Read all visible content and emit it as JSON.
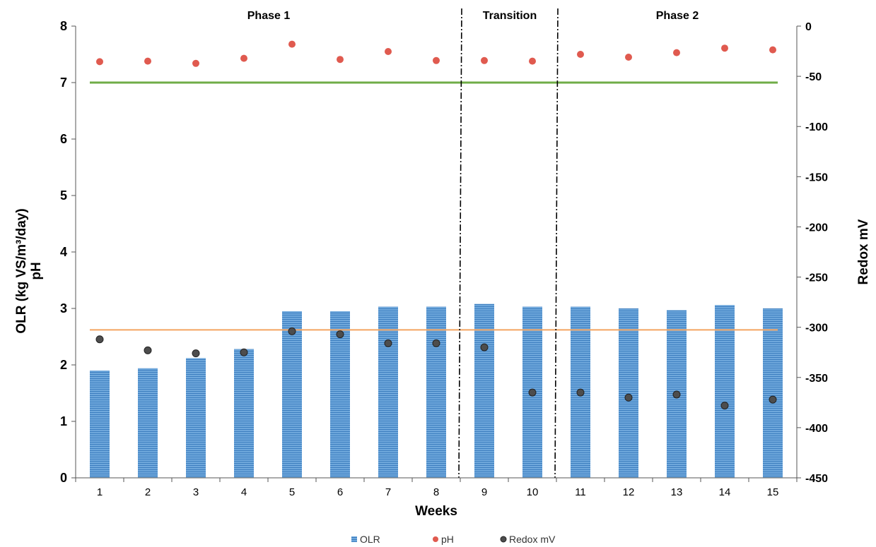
{
  "chart_data": {
    "type": "bar",
    "categories": [
      "1",
      "2",
      "3",
      "4",
      "5",
      "6",
      "7",
      "8",
      "9",
      "10",
      "11",
      "12",
      "13",
      "14",
      "15"
    ],
    "xlabel": "Weeks",
    "ylabel_left_line1": "OLR (kg VS/m³/day)",
    "ylabel_left_line2": "pH",
    "ylabel_right": "Redox mV",
    "ylim_left": [
      0,
      8
    ],
    "yticks_left": [
      0,
      1,
      2,
      3,
      4,
      5,
      6,
      7,
      8
    ],
    "ylim_right": [
      -450,
      0
    ],
    "yticks_right": [
      -450,
      -400,
      -350,
      -300,
      -250,
      -200,
      -150,
      -100,
      -50,
      0
    ],
    "series": [
      {
        "name": "OLR",
        "kind": "bar",
        "axis": "left",
        "color": "#5b9bd5",
        "values": [
          1.9,
          1.94,
          2.12,
          2.28,
          2.95,
          2.95,
          3.03,
          3.03,
          3.08,
          3.03,
          3.03,
          3.0,
          2.97,
          3.06,
          3.0
        ]
      },
      {
        "name": "pH",
        "kind": "scatter",
        "axis": "left",
        "color": "#e05a4f",
        "values": [
          7.37,
          7.38,
          7.34,
          7.43,
          7.68,
          7.41,
          7.55,
          7.39,
          7.39,
          7.38,
          7.5,
          7.45,
          7.53,
          7.61,
          7.58
        ]
      },
      {
        "name": "Redox mV",
        "kind": "scatter",
        "axis": "right",
        "color": "#4d4d4d",
        "values": [
          -312,
          -323,
          -326,
          -325,
          -304,
          -307,
          -316,
          -316,
          -320,
          -365,
          -365,
          -370,
          -367,
          -378,
          -372
        ]
      }
    ],
    "reference_lines": [
      {
        "axis": "left",
        "value": 7.0,
        "color": "#70ad47"
      },
      {
        "axis": "left",
        "value": 2.62,
        "color": "#f4a460"
      }
    ],
    "phase_dividers_after_week": [
      8.5,
      10.5
    ],
    "phase_labels": [
      "Phase 1",
      "Transition",
      "Phase 2"
    ],
    "legend": [
      "OLR",
      "pH",
      "Redox mV"
    ],
    "legend_position": "bottom"
  }
}
